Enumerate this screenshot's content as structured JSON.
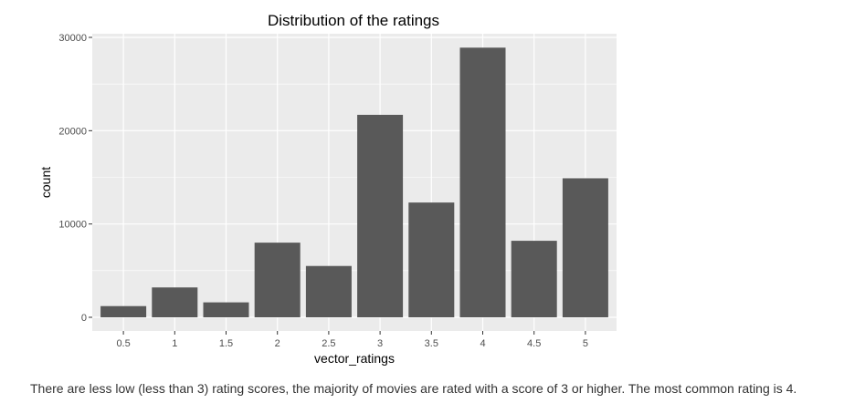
{
  "chart_data": {
    "type": "bar",
    "title": "Distribution of the ratings",
    "xlabel": "vector_ratings",
    "ylabel": "count",
    "categories": [
      "0.5",
      "1",
      "1.5",
      "2",
      "2.5",
      "3",
      "3.5",
      "4",
      "4.5",
      "5"
    ],
    "values": [
      1200,
      3200,
      1600,
      8000,
      5500,
      21700,
      12300,
      28900,
      8200,
      14900
    ],
    "y_ticks": [
      "0",
      "10000",
      "20000",
      "30000"
    ],
    "ylim": [
      0,
      30500
    ],
    "grid": true,
    "bar_color": "#595959",
    "panel_color": "#ebebeb",
    "grid_color": "#ffffff"
  },
  "caption": "There are less low (less than 3) rating scores, the majority of movies are rated with a score of 3 or higher. The most common rating is 4."
}
